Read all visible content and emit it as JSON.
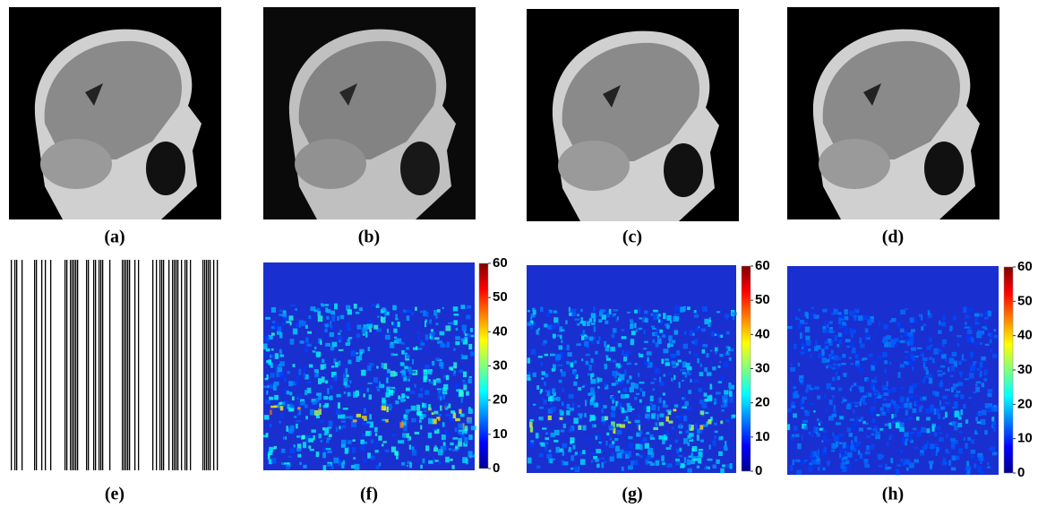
{
  "panels": [
    {
      "label": "(a)"
    },
    {
      "label": "(b)"
    },
    {
      "label": "(c)"
    },
    {
      "label": "(d)"
    },
    {
      "label": "(e)"
    },
    {
      "label": "(f)"
    },
    {
      "label": "(g)"
    },
    {
      "label": "(h)"
    }
  ],
  "colorbars": [
    {
      "lim": [
        0,
        60
      ],
      "ticks": [
        0,
        10,
        20,
        30,
        40,
        50,
        60
      ]
    },
    {
      "lim": [
        0,
        60
      ],
      "ticks": [
        0,
        10,
        20,
        30,
        40,
        50,
        60
      ]
    },
    {
      "lim": [
        0,
        60
      ],
      "ticks": [
        0,
        10,
        20,
        30,
        40,
        50,
        60
      ]
    }
  ]
}
